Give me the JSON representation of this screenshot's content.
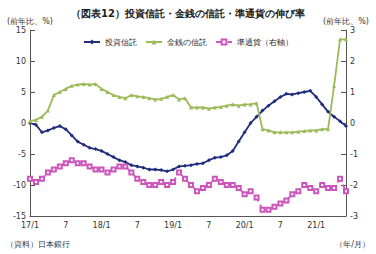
{
  "chart_data": {
    "type": "line",
    "title": "（図表12）投資信託・金銭の信託・準通貨の伸び率",
    "ylabel": "(前年比、%)",
    "y2label": "(前年比、%)",
    "annotations": [
      "（資料）日本銀行",
      "（年/月）"
    ],
    "categories": [
      "17/1",
      null,
      null,
      null,
      null,
      null,
      "7",
      null,
      null,
      null,
      null,
      null,
      "18/1",
      null,
      null,
      null,
      null,
      null,
      "7",
      null,
      null,
      null,
      null,
      null,
      "19/1",
      null,
      null,
      null,
      null,
      null,
      "7",
      null,
      null,
      null,
      null,
      null,
      "20/1",
      null,
      null,
      null,
      null,
      null,
      "7",
      null,
      null,
      null,
      null,
      null,
      "21/1",
      null,
      null,
      null,
      null,
      null
    ],
    "series": [
      {
        "name": "投資信託",
        "color": "#1f2d7a",
        "marker": "diamond",
        "line_style": "solid",
        "values": [
          0,
          -0.3,
          -1.5,
          -1.2,
          -0.8,
          -0.5,
          -1,
          -2,
          -3,
          -3.5,
          -4,
          -4.2,
          -4.5,
          -5,
          -5.5,
          -6,
          -6.3,
          -6.8,
          -7,
          -7.2,
          -7.5,
          -7.5,
          -7.6,
          -7.8,
          -7.5,
          -7,
          -6.9,
          -6.8,
          -6.6,
          -6.5,
          -6,
          -5.6,
          -5.5,
          -5.2,
          -4.5,
          -3,
          -1.5,
          0,
          1,
          2,
          2.8,
          3.5,
          4.2,
          4.7,
          4.6,
          4.8,
          5,
          5.2,
          4.2,
          3,
          1.8,
          1,
          0.3,
          -0.5
        ]
      },
      {
        "name": "金銭の信託",
        "color": "#9bbb59",
        "marker": "triangle",
        "line_style": "solid",
        "values": [
          0.3,
          0.5,
          1,
          2,
          4.5,
          5,
          5.5,
          6,
          6.2,
          6.3,
          6.2,
          6.3,
          5.5,
          5,
          4.5,
          4.2,
          4,
          4.5,
          4.3,
          4.2,
          4,
          3.8,
          3.9,
          4.2,
          4.5,
          3.8,
          4,
          2.5,
          2.5,
          2.5,
          2.3,
          2.5,
          2.6,
          2.8,
          3,
          2.8,
          3,
          3,
          3.2,
          -1,
          -1.2,
          -1.5,
          -1.5,
          -1.5,
          -1.5,
          -1.4,
          -1.3,
          -1.2,
          -1.2,
          -1,
          -1,
          6,
          13.5,
          13.5
        ]
      },
      {
        "name": "準通貨（右軸）",
        "color": "#cc55bb",
        "marker": "hollow_square",
        "line_style": "dashed",
        "axis": "y2",
        "values": [
          -1.8,
          -1.9,
          -1.8,
          -1.6,
          -1.5,
          -1.4,
          -1.3,
          -1.2,
          -1.3,
          -1.3,
          -1.4,
          -1.5,
          -1.5,
          -1.6,
          -1.5,
          -1.4,
          -1.4,
          -1.6,
          -1.8,
          -1.9,
          -2,
          -2,
          -1.9,
          -2,
          -1.9,
          -1.6,
          -1.8,
          -2,
          -2.2,
          -2.1,
          -2,
          -1.8,
          -1.9,
          -2,
          -2,
          -2.1,
          -2.3,
          -2.2,
          -2.4,
          -2.8,
          -2.8,
          -2.7,
          -2.6,
          -2.5,
          -2.3,
          -2.2,
          -2,
          -2.1,
          -2.2,
          -2,
          -2.1,
          -2.1,
          -1.8,
          -2.2
        ]
      }
    ],
    "ylim": [
      -15,
      15
    ],
    "yticks": [
      -15,
      -10,
      -5,
      0,
      5,
      10,
      15
    ],
    "y2lim": [
      -3,
      3
    ],
    "y2ticks": [
      -3,
      -2,
      -1,
      0,
      1,
      2,
      3
    ],
    "grid": false,
    "legend": "top"
  }
}
